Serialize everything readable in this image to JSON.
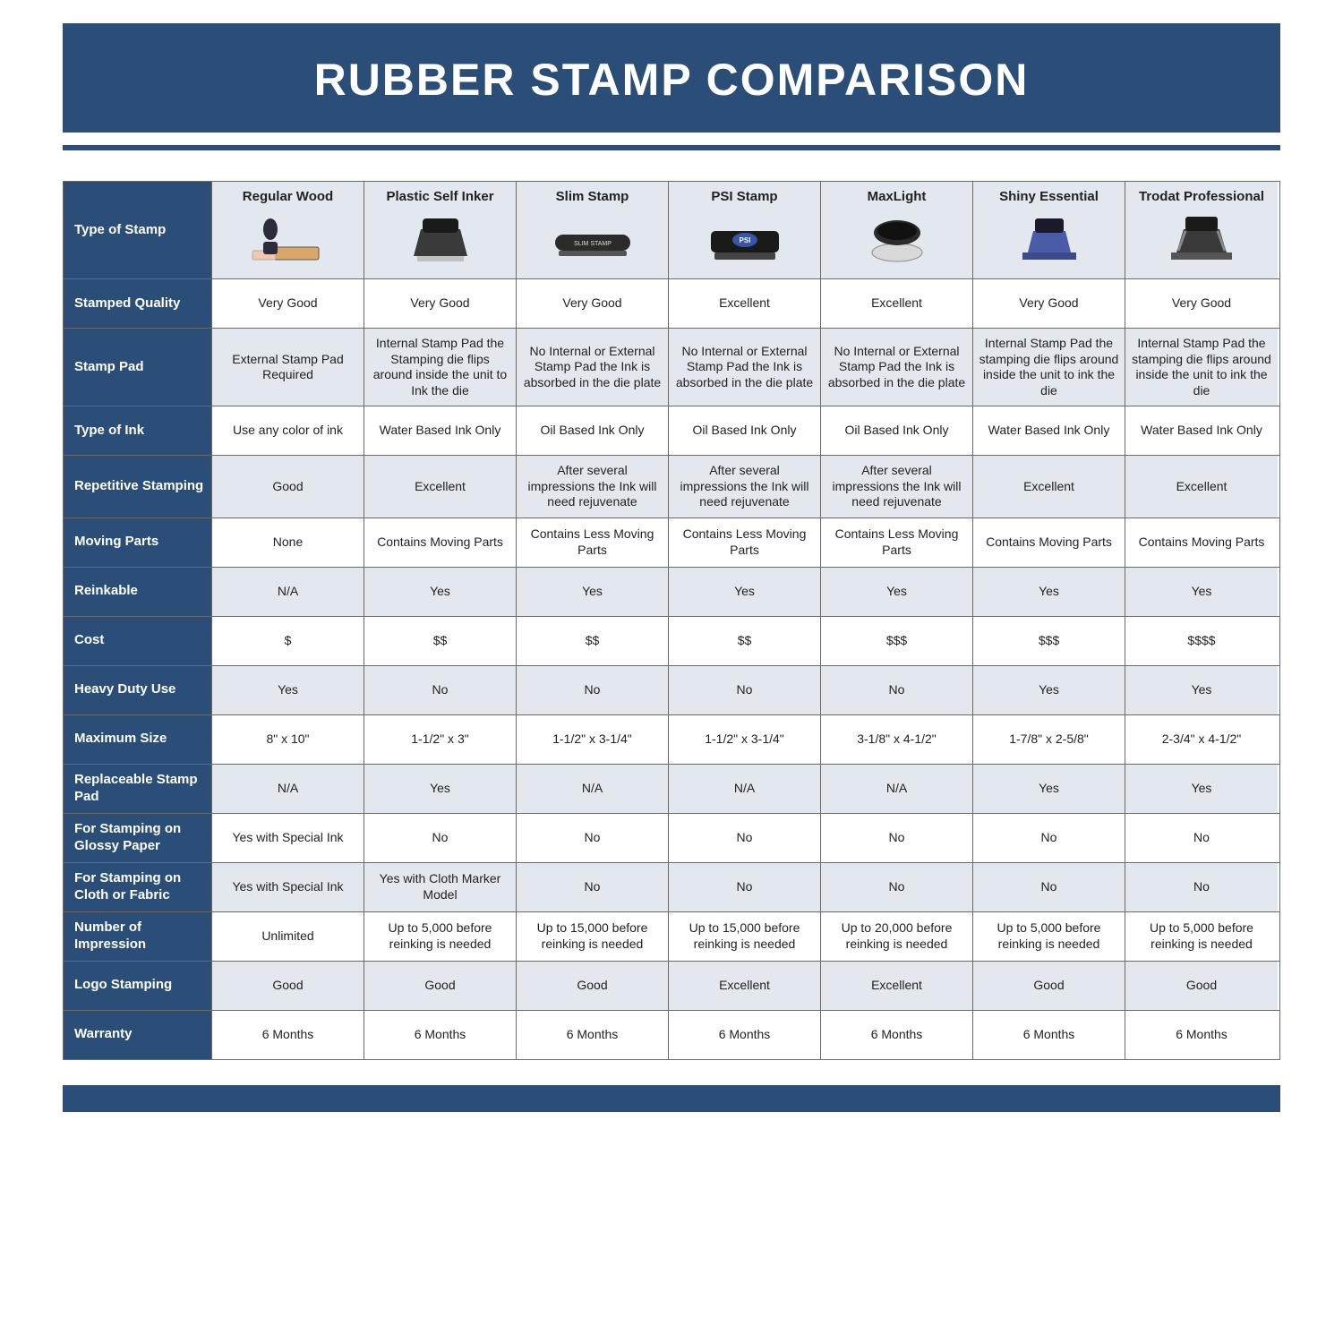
{
  "title": "RUBBER STAMP COMPARISON",
  "colors": {
    "navy": "#2a4e77",
    "shade": "#e3e8ee",
    "white": "#ffffff",
    "text": "#222222",
    "border": "#6a6a6a"
  },
  "columns": [
    "Regular Wood",
    "Plastic Self Inker",
    "Slim Stamp",
    "PSI Stamp",
    "MaxLight",
    "Shiny Essential",
    "Trodat Professional"
  ],
  "label_header": "Type of Stamp",
  "rows": [
    {
      "label": "Stamped Quality",
      "shaded": false,
      "cells": [
        "Very Good",
        "Very Good",
        "Very Good",
        "Excellent",
        "Excellent",
        "Very Good",
        "Very Good"
      ]
    },
    {
      "label": "Stamp Pad",
      "shaded": true,
      "cells": [
        "External Stamp Pad Required",
        "Internal Stamp Pad the Stamping die flips around inside the unit to Ink the die",
        "No Internal or External Stamp Pad the Ink is absorbed in the die plate",
        "No Internal or External Stamp Pad the Ink is absorbed in the die plate",
        "No Internal or External Stamp Pad the Ink is absorbed in the die plate",
        "Internal Stamp Pad the stamping die flips around inside the unit to ink the die",
        "Internal Stamp Pad the stamping die flips around inside the unit to ink the die"
      ]
    },
    {
      "label": "Type of Ink",
      "shaded": false,
      "cells": [
        "Use any color of ink",
        "Water Based Ink Only",
        "Oil Based Ink Only",
        "Oil Based Ink Only",
        "Oil Based Ink Only",
        "Water Based Ink Only",
        "Water Based Ink Only"
      ]
    },
    {
      "label": "Repetitive Stamping",
      "shaded": true,
      "cells": [
        "Good",
        "Excellent",
        "After several impressions the Ink will need rejuvenate",
        "After several impressions the Ink will need rejuvenate",
        "After several impressions the Ink will need rejuvenate",
        "Excellent",
        "Excellent"
      ]
    },
    {
      "label": "Moving Parts",
      "shaded": false,
      "cells": [
        "None",
        "Contains Moving Parts",
        "Contains Less Moving Parts",
        "Contains Less Moving Parts",
        "Contains Less Moving Parts",
        "Contains Moving Parts",
        "Contains Moving Parts"
      ]
    },
    {
      "label": "Reinkable",
      "shaded": true,
      "cells": [
        "N/A",
        "Yes",
        "Yes",
        "Yes",
        "Yes",
        "Yes",
        "Yes"
      ]
    },
    {
      "label": "Cost",
      "shaded": false,
      "cells": [
        "$",
        "$$",
        "$$",
        "$$",
        "$$$",
        "$$$",
        "$$$$"
      ]
    },
    {
      "label": "Heavy Duty Use",
      "shaded": true,
      "cells": [
        "Yes",
        "No",
        "No",
        "No",
        "No",
        "Yes",
        "Yes"
      ]
    },
    {
      "label": "Maximum Size",
      "shaded": false,
      "cells": [
        "8\" x 10\"",
        "1-1/2\" x 3\"",
        "1-1/2\" x 3-1/4\"",
        "1-1/2\" x 3-1/4\"",
        "3-1/8\" x 4-1/2\"",
        "1-7/8\" x 2-5/8\"",
        "2-3/4\" x 4-1/2\""
      ]
    },
    {
      "label": "Replaceable Stamp Pad",
      "shaded": true,
      "cells": [
        "N/A",
        "Yes",
        "N/A",
        "N/A",
        "N/A",
        "Yes",
        "Yes"
      ]
    },
    {
      "label": "For Stamping on Glossy Paper",
      "shaded": false,
      "cells": [
        "Yes with Special Ink",
        "No",
        "No",
        "No",
        "No",
        "No",
        "No"
      ]
    },
    {
      "label": "For Stamping on Cloth or Fabric",
      "shaded": true,
      "cells": [
        "Yes with Special Ink",
        "Yes with Cloth Marker Model",
        "No",
        "No",
        "No",
        "No",
        "No"
      ]
    },
    {
      "label": "Number of Impression",
      "shaded": false,
      "cells": [
        "Unlimited",
        "Up to 5,000 before reinking is needed",
        "Up to 15,000 before reinking is needed",
        "Up to 15,000 before reinking is needed",
        "Up to 20,000 before reinking is needed",
        "Up to 5,000 before reinking is needed",
        "Up to 5,000 before reinking is needed"
      ]
    },
    {
      "label": "Logo Stamping",
      "shaded": true,
      "cells": [
        "Good",
        "Good",
        "Good",
        "Excellent",
        "Excellent",
        "Good",
        "Good"
      ]
    },
    {
      "label": "Warranty",
      "shaded": false,
      "cells": [
        "6 Months",
        "6 Months",
        "6 Months",
        "6 Months",
        "6 Months",
        "6 Months",
        "6 Months"
      ]
    }
  ]
}
